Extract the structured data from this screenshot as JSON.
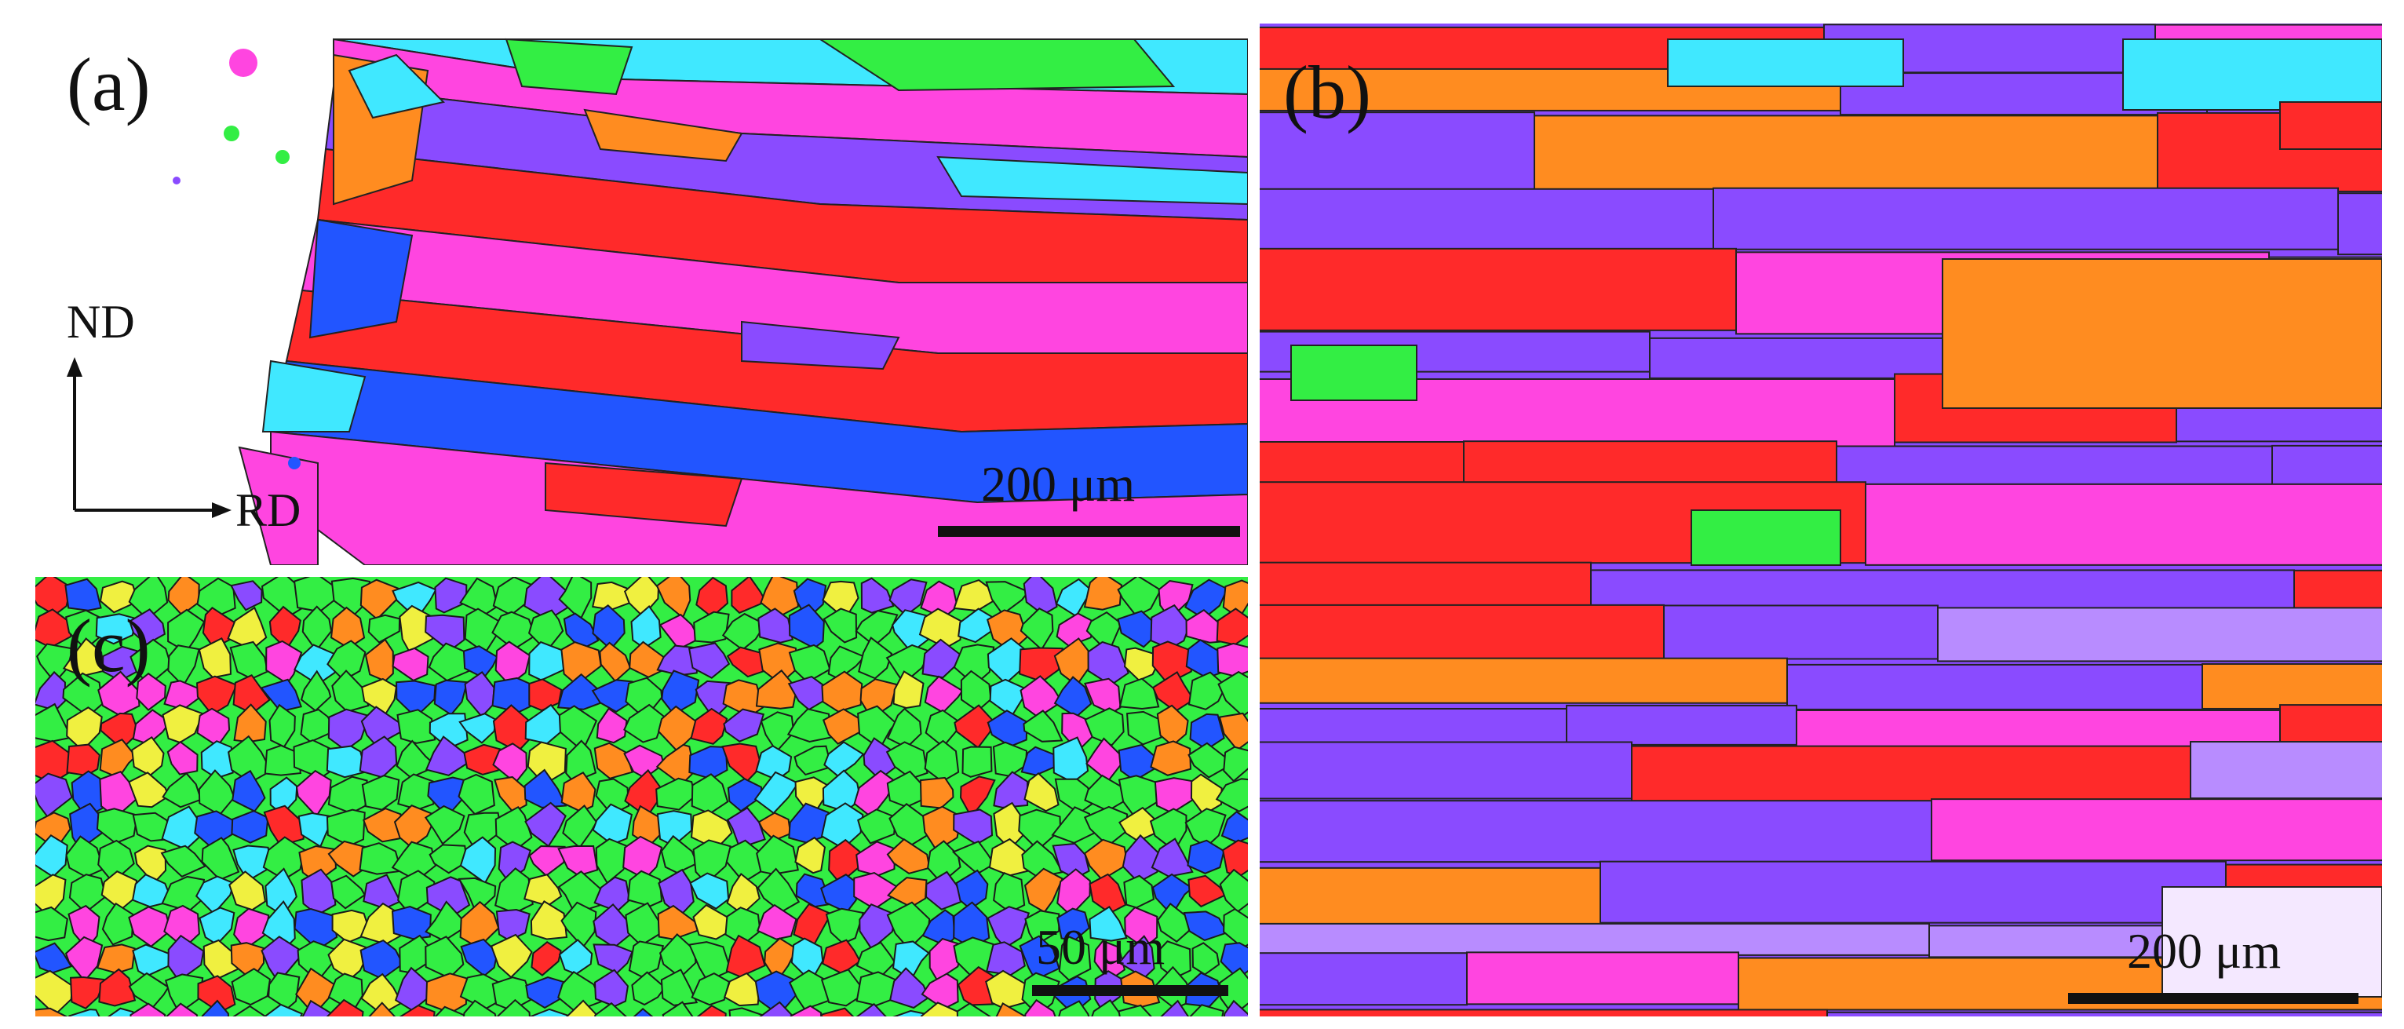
{
  "panels": {
    "a": {
      "label": "(a)",
      "scale": "200 μm"
    },
    "b": {
      "label": "(b)",
      "scale": "200 μm"
    },
    "c": {
      "label": "(c)",
      "scale": "50 μm"
    }
  },
  "axes": {
    "vertical": "ND",
    "horizontal": "RD"
  },
  "colors": {
    "background": "#ffffff",
    "ebsd_red": "#ff2a2a",
    "ebsd_purple": "#8a4bff",
    "ebsd_magenta": "#ff45e0",
    "ebsd_green": "#33ee44",
    "ebsd_blue": "#2255ff",
    "ebsd_cyan": "#40e8ff",
    "ebsd_orange": "#ff8c20"
  }
}
